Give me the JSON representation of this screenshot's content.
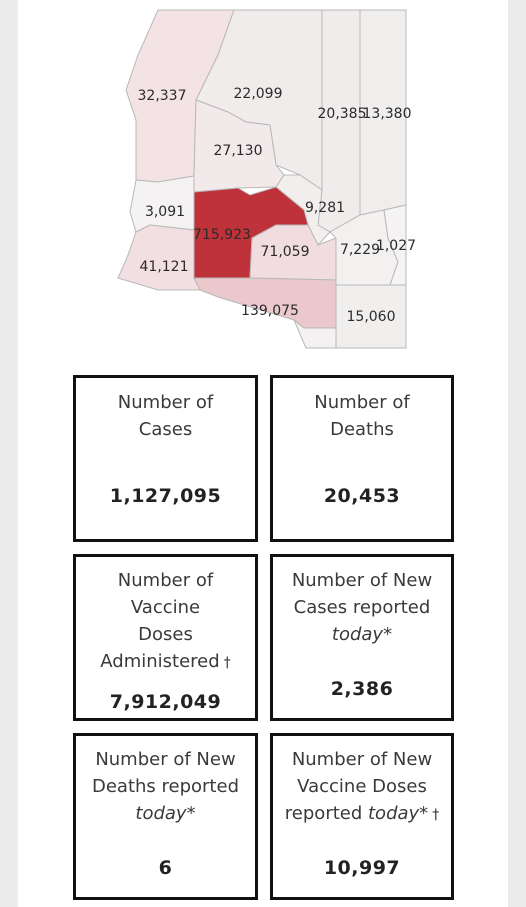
{
  "map": {
    "counties": [
      {
        "name": "Mohave",
        "value": "32,337",
        "fill": "#f3e3e5"
      },
      {
        "name": "Coconino",
        "value": "22,099",
        "fill": "#f0ecec"
      },
      {
        "name": "Yavapai",
        "value": "27,130",
        "fill": "#f2e9ea"
      },
      {
        "name": "Navajo",
        "value": "20,385",
        "fill": "#f0ecec"
      },
      {
        "name": "Apache",
        "value": "13,380",
        "fill": "#f0eded"
      },
      {
        "name": "La Paz",
        "value": "3,091",
        "fill": "#f4f2f2"
      },
      {
        "name": "Gila",
        "value": "9,281",
        "fill": "#f2eeee"
      },
      {
        "name": "Maricopa",
        "value": "715,923",
        "fill": "#c0323a"
      },
      {
        "name": "Pinal",
        "value": "71,059",
        "fill": "#f1dcdf"
      },
      {
        "name": "Graham",
        "value": "7,229",
        "fill": "#f3f0f0"
      },
      {
        "name": "Greenlee",
        "value": "1,027",
        "fill": "#f5f3f3"
      },
      {
        "name": "Yuma",
        "value": "41,121",
        "fill": "#f2dfe1"
      },
      {
        "name": "Pima",
        "value": "139,075",
        "fill": "#eac8cc"
      },
      {
        "name": "Cochise",
        "value": "15,060",
        "fill": "#f1eeee"
      },
      {
        "name": "Santa Cruz",
        "value": "",
        "fill": "#f3f1f1"
      }
    ]
  },
  "cards": {
    "cases": {
      "line1": "Number of",
      "line2": "Cases",
      "value": "1,127,095"
    },
    "deaths": {
      "line1": "Number of",
      "line2": "Deaths",
      "value": "20,453"
    },
    "vaccine": {
      "line1": "Number of",
      "line2": "Vaccine",
      "line3": "Doses",
      "line4": "Administered",
      "dagger": "†",
      "value": "7,912,049"
    },
    "new_cases": {
      "line1": "Number of New",
      "line2": "Cases reported",
      "line3": "today*",
      "value": "2,386"
    },
    "new_deaths": {
      "line1": "Number of New",
      "line2": "Deaths reported",
      "line3": "today*",
      "value": "6"
    },
    "new_vaccine": {
      "line1": "Number of New",
      "line2": "Vaccine Doses",
      "line3_a": "reported ",
      "line3_b": "today*",
      "dagger": "†",
      "value": "10,997"
    }
  },
  "colors": {
    "maricopa": "#c0323a",
    "pima": "#eac8cc",
    "border": "#111111"
  }
}
